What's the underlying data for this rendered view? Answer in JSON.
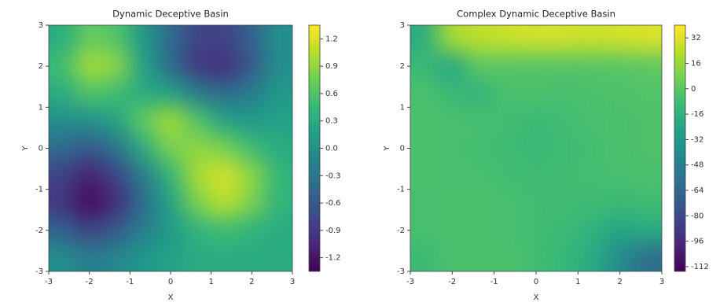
{
  "chart_data": [
    {
      "type": "heatmap",
      "title": "Dynamic Deceptive Basin",
      "xlabel": "X",
      "ylabel": "Y",
      "xlim": [
        -3,
        3
      ],
      "ylim": [
        -3,
        3
      ],
      "xticks": [
        -3,
        -2,
        -1,
        0,
        1,
        2,
        3
      ],
      "yticks": [
        -3,
        -2,
        -1,
        0,
        1,
        2,
        3
      ],
      "colormap": "viridis",
      "z": [
        [
          0.3,
          0.7,
          0.6,
          0.1,
          -0.4,
          -0.8,
          -0.8,
          -0.5,
          0.0
        ],
        [
          0.5,
          1.0,
          0.9,
          0.2,
          -0.4,
          -0.9,
          -1.0,
          -0.6,
          0.0
        ],
        [
          0.3,
          0.6,
          0.5,
          0.3,
          0.2,
          -0.2,
          -0.4,
          -0.2,
          0.1
        ],
        [
          0.0,
          0.0,
          0.2,
          0.7,
          1.0,
          0.6,
          0.2,
          0.1,
          0.2
        ],
        [
          -0.4,
          -0.6,
          -0.3,
          0.3,
          0.8,
          0.9,
          0.8,
          0.5,
          0.3
        ],
        [
          -0.8,
          -1.1,
          -0.8,
          -0.2,
          0.4,
          1.0,
          1.2,
          0.9,
          0.4
        ],
        [
          -0.9,
          -1.3,
          -1.0,
          -0.4,
          0.2,
          0.8,
          1.1,
          0.8,
          0.4
        ],
        [
          -0.5,
          -0.8,
          -0.6,
          -0.2,
          0.1,
          0.4,
          0.5,
          0.4,
          0.3
        ],
        [
          0.0,
          -0.2,
          -0.1,
          0.1,
          0.2,
          0.3,
          0.3,
          0.3,
          0.3
        ]
      ],
      "clim": [
        -1.35,
        1.35
      ],
      "cticks": [
        1.2,
        0.9,
        0.6,
        0.3,
        {
          "value": 0,
          "label": "0.0"
        },
        -0.3,
        -0.6,
        -0.9,
        -1.2
      ]
    },
    {
      "type": "heatmap",
      "title": "Complex Dynamic Deceptive Basin",
      "xlabel": "X",
      "ylabel": "Y",
      "xlim": [
        -3,
        3
      ],
      "ylim": [
        -3,
        3
      ],
      "xticks": [
        -3,
        -2,
        -1,
        0,
        1,
        2,
        3
      ],
      "yticks": [
        -3,
        -2,
        -1,
        0,
        1,
        2,
        3
      ],
      "colormap": "viridis",
      "z": [
        [
          -20,
          20,
          25,
          28,
          30,
          30,
          28,
          30,
          32
        ],
        [
          -10,
          -25,
          0,
          -2,
          -2,
          -3,
          -2,
          -2,
          0
        ],
        [
          -5,
          -10,
          -15,
          -5,
          -5,
          -6,
          -5,
          -4,
          -3
        ],
        [
          -5,
          -6,
          -6,
          -8,
          -10,
          -8,
          -6,
          -5,
          -4
        ],
        [
          -5,
          -6,
          -7,
          -9,
          -10,
          -9,
          -7,
          -5,
          -4
        ],
        [
          -5,
          -6,
          -6,
          -8,
          -9,
          -8,
          -7,
          -6,
          -5
        ],
        [
          -6,
          -5,
          -5,
          -6,
          -8,
          -8,
          -9,
          -10,
          -8
        ],
        [
          -6,
          -5,
          -5,
          -6,
          -8,
          -10,
          -15,
          -25,
          -20
        ],
        [
          -10,
          -5,
          -5,
          -5,
          -8,
          -12,
          -20,
          -40,
          -60
        ]
      ],
      "clim": [
        -115,
        40
      ],
      "cticks": [
        32,
        16,
        0,
        -16,
        -32,
        -48,
        -64,
        -80,
        -96,
        -112
      ]
    }
  ]
}
